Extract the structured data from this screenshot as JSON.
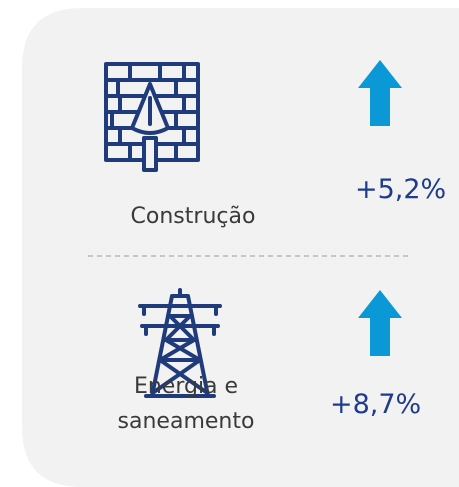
{
  "items": [
    {
      "label": [
        "Construção"
      ],
      "change": "+5,2%"
    },
    {
      "label": [
        "Energia e",
        "saneamento"
      ],
      "change": "+8,7%"
    }
  ]
}
